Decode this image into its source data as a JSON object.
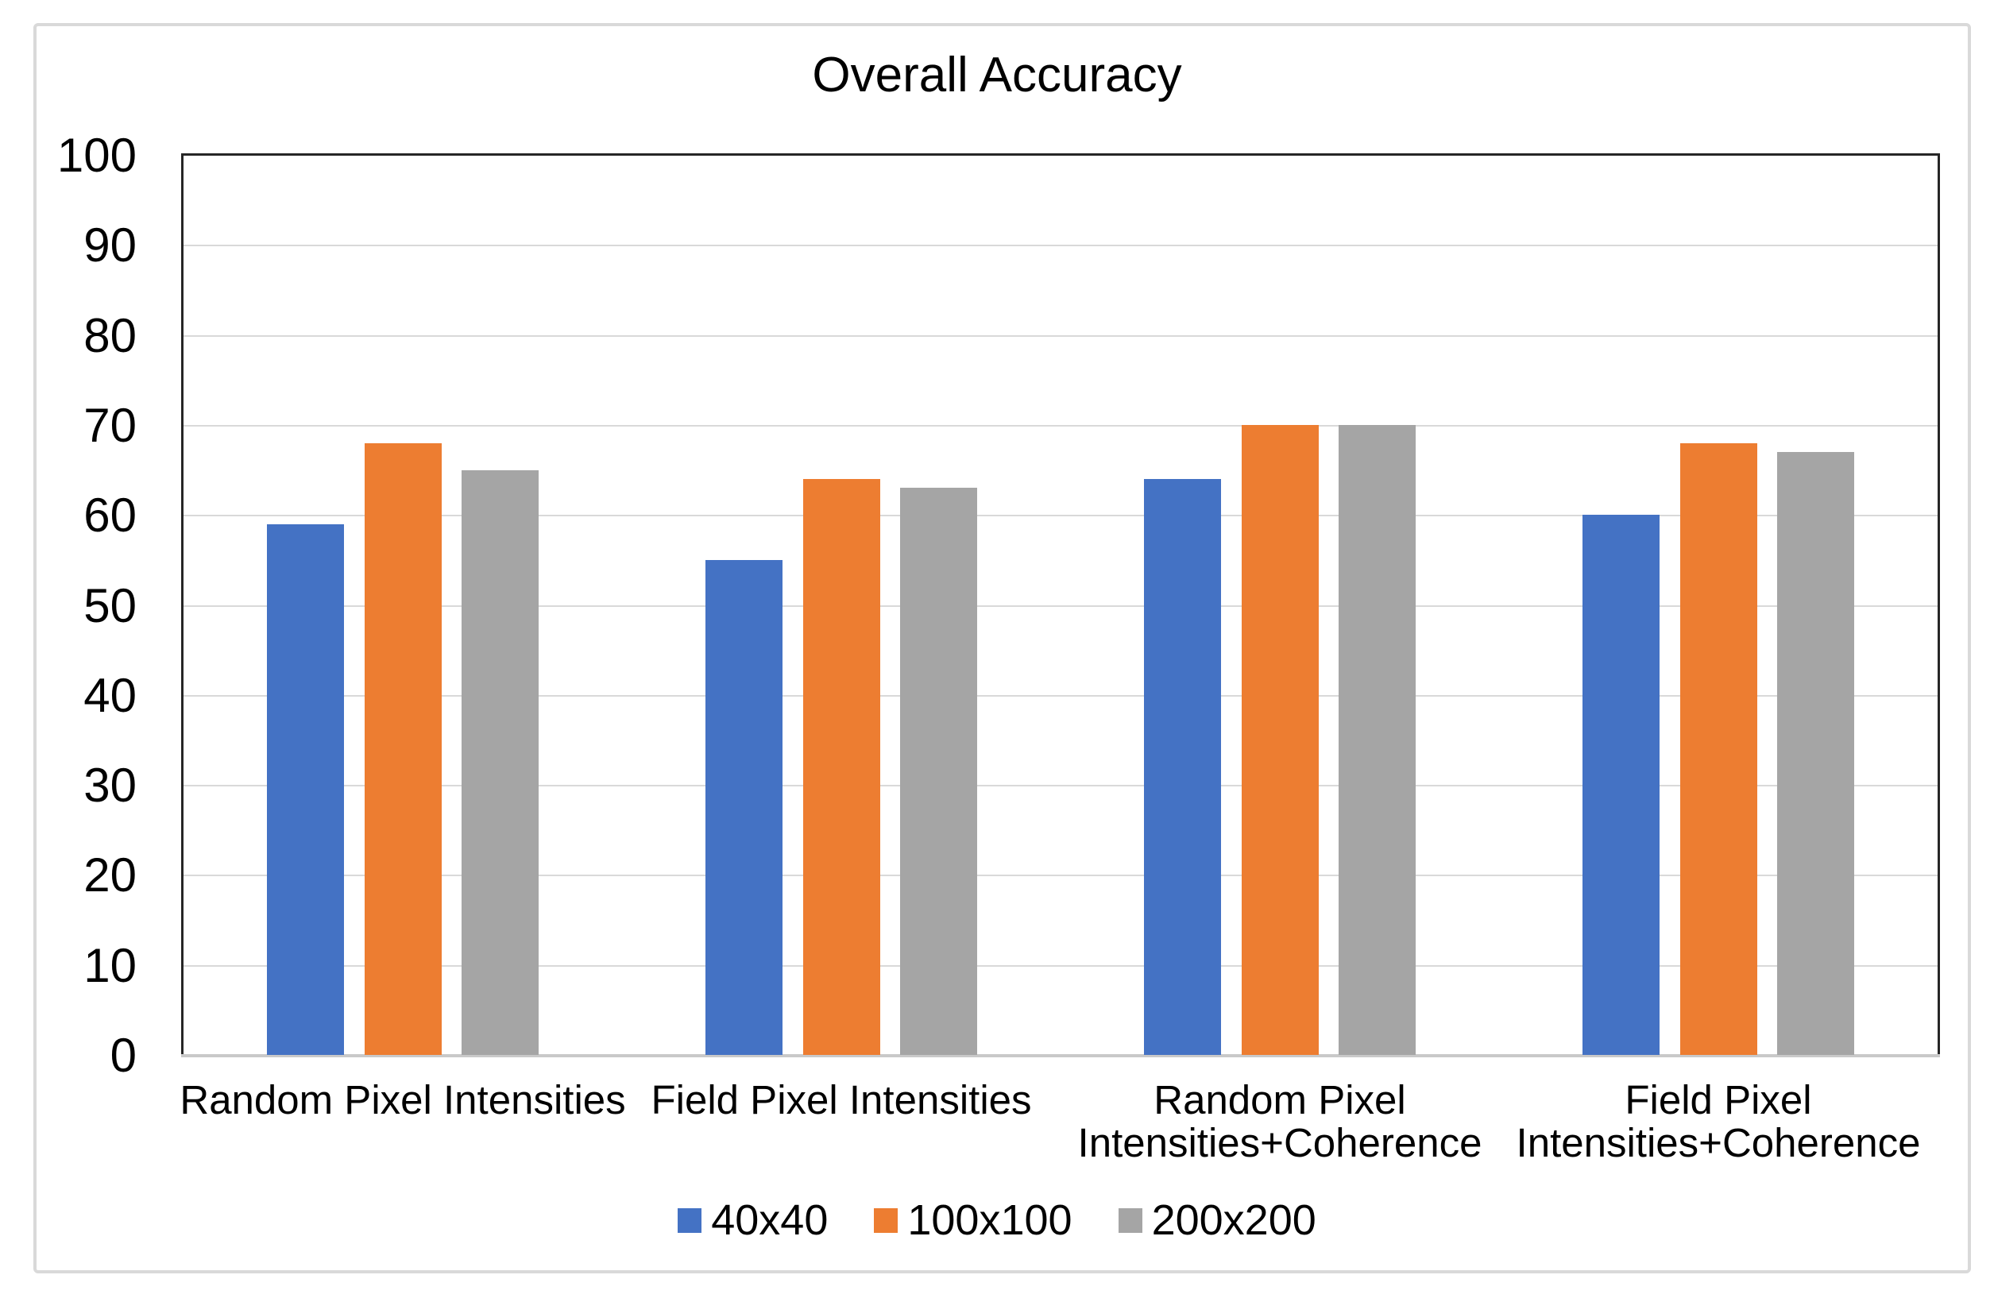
{
  "title": "Overall Accuracy",
  "chart_data": {
    "type": "bar",
    "title": "Overall Accuracy",
    "categories": [
      "Random Pixel Intensities",
      "Field Pixel Intensities",
      "Random Pixel\nIntensities+Coherence",
      "Field Pixel\nIntensities+Coherence"
    ],
    "series": [
      {
        "name": "40x40",
        "color": "#4472C4",
        "values": [
          59,
          55,
          64,
          60
        ]
      },
      {
        "name": "100x100",
        "color": "#ED7D31",
        "values": [
          68,
          64,
          70,
          68
        ]
      },
      {
        "name": "200x200",
        "color": "#A5A5A5",
        "values": [
          65,
          63,
          70,
          67
        ]
      }
    ],
    "ylim": [
      0,
      100
    ],
    "yticks": [
      0,
      10,
      20,
      30,
      40,
      50,
      60,
      70,
      80,
      90,
      100
    ],
    "grid": true,
    "legend_position": "bottom",
    "colors": {
      "plot_border": "#262626",
      "gridline": "#d9d9d9",
      "baseline": "#c9c9c9",
      "frame": "#d9d9d9",
      "text": "#000000",
      "background": "#ffffff"
    }
  }
}
